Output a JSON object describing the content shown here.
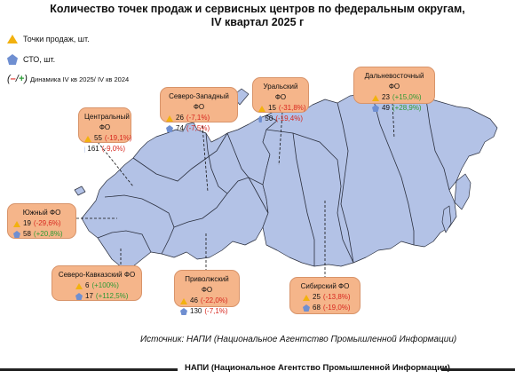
{
  "title_line1": "Количество точек продаж и сервисных центров по федеральным округам,",
  "title_line2": "IV квартал 2025 г",
  "legend": {
    "points": "Точки продаж, шт.",
    "sto": "СТО, шт.",
    "dynamics_symbol_open": "(",
    "dynamics_symbol_minus": "–",
    "dynamics_symbol_sep": "/",
    "dynamics_symbol_plus": "+",
    "dynamics_symbol_close": ")",
    "dynamics": "Динамика IV кв 2025/ IV кв 2024"
  },
  "colors": {
    "label_fill": "#f5b58a",
    "map_fill": "#b3c2e6",
    "map_stroke": "#2a2f3e",
    "triangle": "#f2b10f",
    "pentagon": "#6f8fd1",
    "negative": "#d8281f",
    "positive": "#2f9a35"
  },
  "districts": [
    {
      "id": "central",
      "name": "Центральный ФО",
      "points": "55",
      "points_change": "(-19,1%)",
      "points_sign": "neg",
      "sto": "161",
      "sto_change": "(-9,0%)",
      "sto_sign": "neg"
    },
    {
      "id": "northwest",
      "name": "Северо-Западный ФО",
      "points": "26",
      "points_change": "(-7,1%)",
      "points_sign": "neg",
      "sto": "74",
      "sto_change": "(-7,5%)",
      "sto_sign": "neg"
    },
    {
      "id": "ural",
      "name": "Уральский ФО",
      "points": "15",
      "points_change": "(-31,8%)",
      "points_sign": "neg",
      "sto": "50",
      "sto_change": "(-19,4%)",
      "sto_sign": "neg"
    },
    {
      "id": "fareast",
      "name": "Дальневосточный ФО",
      "points": "23",
      "points_change": "(+15,0%)",
      "points_sign": "pos",
      "sto": "49",
      "sto_change": "(+28,9%)",
      "sto_sign": "pos"
    },
    {
      "id": "south",
      "name": "Южный ФО",
      "points": "19",
      "points_change": "(-29,6%)",
      "points_sign": "neg",
      "sto": "58",
      "sto_change": "(+20,8%)",
      "sto_sign": "pos"
    },
    {
      "id": "ncaucasus",
      "name": "Северо-Кавказский ФО",
      "points": "6",
      "points_change": "(+100%)",
      "points_sign": "pos",
      "sto": "17",
      "sto_change": "(+112,5%)",
      "sto_sign": "pos"
    },
    {
      "id": "volga",
      "name": "Приволжский ФО",
      "points": "46",
      "points_change": "(-22,0%)",
      "points_sign": "neg",
      "sto": "130",
      "sto_change": "(-7,1%)",
      "sto_sign": "neg"
    },
    {
      "id": "siberia",
      "name": "Сибирский ФО",
      "points": "25",
      "points_change": "(-13,8%)",
      "points_sign": "neg",
      "sto": "68",
      "sto_change": "(-19,0%)",
      "sto_sign": "neg"
    }
  ],
  "source": "Источник: НАПИ (Национальное Агентство Промышленной Информации)",
  "footer": "НАПИ (Национальное Агентство Промышленной Информации)"
}
